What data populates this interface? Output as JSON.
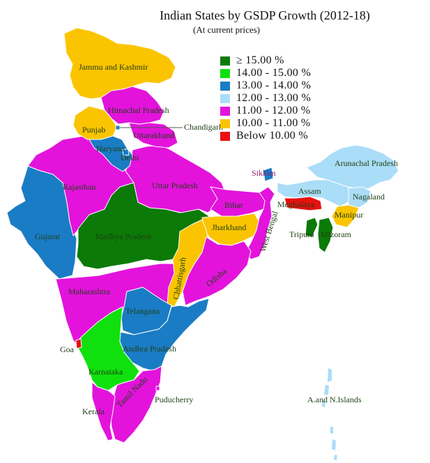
{
  "title": "Indian States by GSDP Growth (2012-18)",
  "subtitle": "(At current prices)",
  "legend": [
    {
      "label": "≥ 15.00 %",
      "color": "#0b7a07"
    },
    {
      "label": "14.00 - 15.00 %",
      "color": "#10e10e"
    },
    {
      "label": "13.00 - 14.00 %",
      "color": "#1a7cc4"
    },
    {
      "label": "12.00 - 13.00 %",
      "color": "#aaddf8"
    },
    {
      "label": "11.00 - 12.00 %",
      "color": "#e313dc"
    },
    {
      "label": "10.00 - 11.00 %",
      "color": "#fbc400"
    },
    {
      "label": "Below 10.00 %",
      "color": "#e81010"
    }
  ],
  "regions": [
    {
      "name": "Jammu and Kashmir",
      "category": 5
    },
    {
      "name": "Himachal Pradesh",
      "category": 4
    },
    {
      "name": "Punjab",
      "category": 5
    },
    {
      "name": "Chandigarh",
      "category": 2
    },
    {
      "name": "Uttarakhand",
      "category": 4
    },
    {
      "name": "Haryana",
      "category": 2
    },
    {
      "name": "Delhi",
      "category": 2
    },
    {
      "name": "Rajasthan",
      "category": 4
    },
    {
      "name": "Uttar Pradesh",
      "category": 4
    },
    {
      "name": "Gujarat",
      "category": 2
    },
    {
      "name": "Madhya Pradesh",
      "category": 0
    },
    {
      "name": "Bihar",
      "category": 4
    },
    {
      "name": "Sikkim",
      "category": 2
    },
    {
      "name": "Arunachal Pradesh",
      "category": 3
    },
    {
      "name": "Assam",
      "category": 3
    },
    {
      "name": "Nagaland",
      "category": 3
    },
    {
      "name": "Meghalaya",
      "category": 6
    },
    {
      "name": "Manipur",
      "category": 5
    },
    {
      "name": "Tripura",
      "category": 0
    },
    {
      "name": "Mizoram",
      "category": 0
    },
    {
      "name": "Jharkhand",
      "category": 5
    },
    {
      "name": "West Bengal",
      "category": 4
    },
    {
      "name": "Chhattisgarh",
      "category": 5
    },
    {
      "name": "Odisha",
      "category": 4
    },
    {
      "name": "Maharashtra",
      "category": 4
    },
    {
      "name": "Telangana",
      "category": 2
    },
    {
      "name": "Goa",
      "category": 6
    },
    {
      "name": "Andhra Pradesh",
      "category": 2
    },
    {
      "name": "Karnataka",
      "category": 1
    },
    {
      "name": "Tamil Nadu",
      "category": 4
    },
    {
      "name": "Kerala",
      "category": 4
    },
    {
      "name": "Puducherry",
      "category": 4
    },
    {
      "name": "A.and N.Islands",
      "category": 3
    }
  ],
  "map_labels": {
    "jk": "Jammu and Kashmir",
    "hp": "Himachal Pradesh",
    "pb": "Punjab",
    "ch": "Chandigarh",
    "uk": "Uttarakhand",
    "hr": "Haryana",
    "dl": "Delhi",
    "rj": "Rajasthan",
    "up": "Uttar Pradesh",
    "gj": "Gujarat",
    "mp": "Madhya Pradesh",
    "br": "Bihar",
    "sk": "Sikkim",
    "ar": "Arunachal Pradesh",
    "as": "Assam",
    "nl": "Nagaland",
    "ml": "Meghalaya",
    "mn": "Manipur",
    "tr": "Tripura",
    "mz": "Mizoram",
    "jh": "Jharkhand",
    "wb": "West Bengal",
    "cg": "Chhattisgarh",
    "od": "Odisha",
    "mh": "Maharashtra",
    "tg": "Telangana",
    "ga": "Goa",
    "ap": "Andhra Pradesh",
    "ka": "Karnataka",
    "tn": "Tamil Nadu",
    "kl": "Kerala",
    "py": "Puducherry",
    "an": "A.and N.Islands"
  }
}
